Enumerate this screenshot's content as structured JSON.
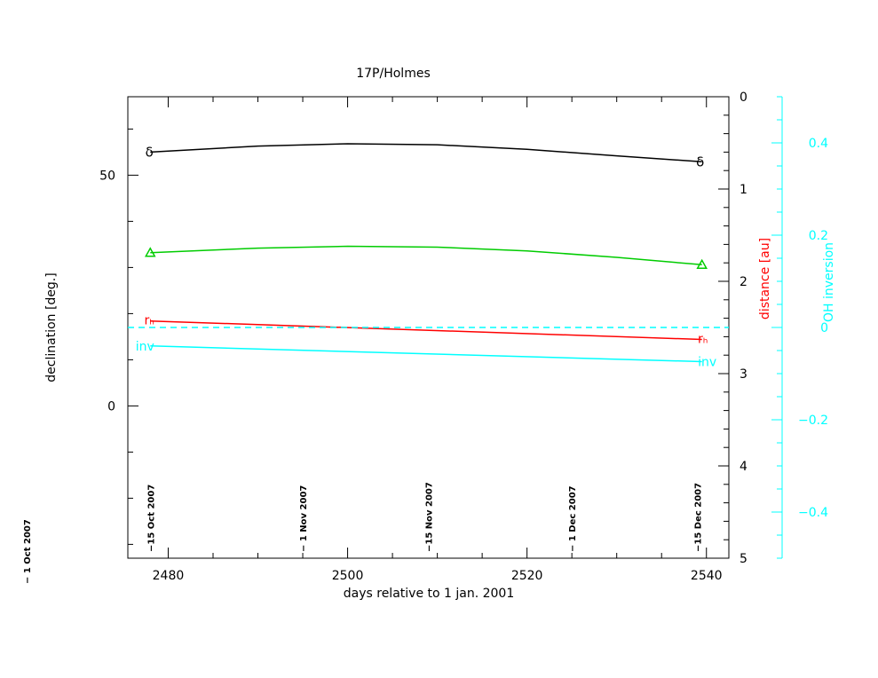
{
  "chart_data": {
    "type": "line",
    "title": "17P/Holmes",
    "xlabel": "days relative to 1 jan. 2001",
    "xlim": [
      2475.5,
      2542.5
    ],
    "x_ticks": [
      "2480",
      "2500",
      "2520",
      "2540"
    ],
    "y_left": {
      "label": "declination [deg.]",
      "lim": [
        -33,
        67
      ],
      "ticks": [
        "0",
        "50"
      ]
    },
    "y_right": {
      "label": "distance [au]",
      "label_color": "#ff0000",
      "lim": [
        0,
        5
      ],
      "inverted": true,
      "ticks": [
        "0",
        "1",
        "2",
        "3",
        "4",
        "5"
      ]
    },
    "y_right2": {
      "label": "OH inversion",
      "color": "#00ffff",
      "lim": [
        -0.5,
        0.5
      ],
      "ticks": [
        "−0.4",
        "−0.2",
        "0",
        "0.2",
        "0.4"
      ]
    },
    "date_markers": [
      {
        "x": 2474,
        "label": "− 1 Oct 2007"
      },
      {
        "x": 2478,
        "label": "−15 Oct 2007"
      },
      {
        "x": 2495,
        "label": "− 1 Nov 2007"
      },
      {
        "x": 2509,
        "label": "−15 Nov 2007"
      },
      {
        "x": 2525,
        "label": "− 1 Dec 2007"
      },
      {
        "x": 2539,
        "label": "−15 Dec 2007"
      }
    ],
    "series": [
      {
        "name": "δ",
        "axis": "declination",
        "color": "#000000",
        "x": [
          2478,
          2490,
          2500,
          2510,
          2520,
          2530,
          2539.5
        ],
        "y": [
          55,
          56.3,
          56.8,
          56.6,
          55.6,
          54.2,
          52.9
        ]
      },
      {
        "name": "Δ",
        "axis": "distance",
        "color": "#00cc00",
        "x": [
          2478,
          2490,
          2500,
          2510,
          2520,
          2530,
          2539.5
        ],
        "y": [
          1.69,
          1.64,
          1.62,
          1.63,
          1.67,
          1.74,
          1.82
        ]
      },
      {
        "name": "rₕ",
        "axis": "distance",
        "color": "#ff0000",
        "x": [
          2478,
          2539.5
        ],
        "y": [
          2.43,
          2.63
        ]
      },
      {
        "name": "inv",
        "axis": "OH inversion",
        "color": "#00ffff",
        "x": [
          2478,
          2539.5
        ],
        "y": [
          -0.04,
          -0.074
        ]
      },
      {
        "name": "OH inversion zero",
        "axis": "OH inversion",
        "color": "#00ffff",
        "style": "dashed",
        "x": [
          2475.5,
          2542.5
        ],
        "y": [
          0,
          0
        ]
      }
    ]
  }
}
